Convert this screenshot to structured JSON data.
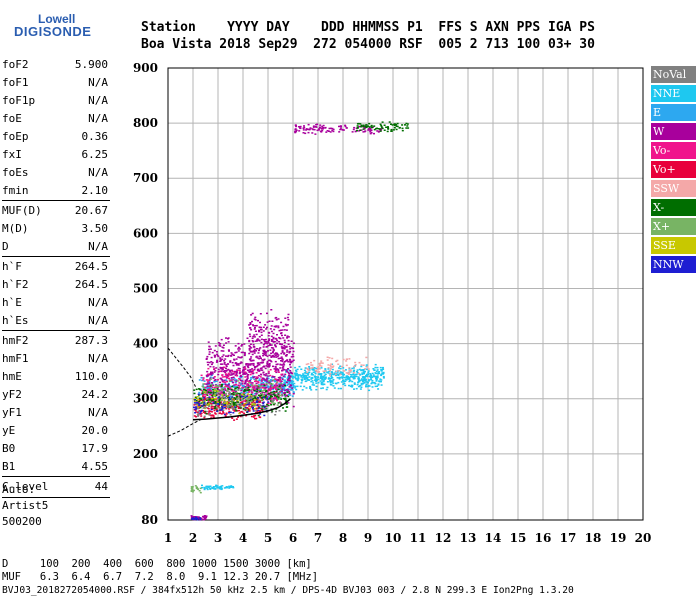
{
  "logo": {
    "line1": "Lowell",
    "line2": "DIGISONDE"
  },
  "header": {
    "labels": "Station    YYYY DAY    DDD HHMMSS P1  FFS S AXN PPS IGA PS",
    "values": "Boa Vista 2018 Sep29  272 054000 RSF  005 2 713 100 03+ 30"
  },
  "params": [
    {
      "name": "foF2",
      "value": "5.900"
    },
    {
      "name": "foF1",
      "value": "N/A"
    },
    {
      "name": "foF1p",
      "value": "N/A"
    },
    {
      "name": "foE",
      "value": "N/A"
    },
    {
      "name": "foEp",
      "value": "0.36"
    },
    {
      "name": "fxI",
      "value": "6.25"
    },
    {
      "name": "foEs",
      "value": "N/A"
    },
    {
      "name": "fmin",
      "value": "2.10"
    },
    {
      "name": "MUF(D)",
      "value": "20.67"
    },
    {
      "name": "M(D)",
      "value": "3.50"
    },
    {
      "name": "D",
      "value": "N/A"
    },
    {
      "name": "h`F",
      "value": "264.5"
    },
    {
      "name": "h`F2",
      "value": "264.5"
    },
    {
      "name": "h`E",
      "value": "N/A"
    },
    {
      "name": "h`Es",
      "value": "N/A"
    },
    {
      "name": "hmF2",
      "value": "287.3"
    },
    {
      "name": "hmF1",
      "value": "N/A"
    },
    {
      "name": "hmE",
      "value": "110.0"
    },
    {
      "name": "yF2",
      "value": "24.2"
    },
    {
      "name": "yF1",
      "value": "N/A"
    },
    {
      "name": "yE",
      "value": "20.0"
    },
    {
      "name": "B0",
      "value": "17.9"
    },
    {
      "name": "B1",
      "value": "4.55"
    },
    {
      "name": "C-level",
      "value": "44"
    }
  ],
  "auto": {
    "line1": "Auto:",
    "line2": "Artist5",
    "line3": "500200"
  },
  "legend": [
    {
      "label": "NoVal",
      "color": "#808080"
    },
    {
      "label": "NNE",
      "color": "#1ec8f0"
    },
    {
      "label": "E",
      "color": "#2da8f0"
    },
    {
      "label": "W",
      "color": "#a8009c"
    },
    {
      "label": "Vo-",
      "color": "#f0148c"
    },
    {
      "label": "Vo+",
      "color": "#e8003c"
    },
    {
      "label": "SSW",
      "color": "#f4a8a8"
    },
    {
      "label": "X-",
      "color": "#006e00"
    },
    {
      "label": "X+",
      "color": "#78b464"
    },
    {
      "label": "SSE",
      "color": "#c8c800"
    },
    {
      "label": "NNW",
      "color": "#1e1ed2"
    }
  ],
  "footer": {
    "line1": "D     100  200  400  600  800 1000 1500 3000 [km]",
    "line2": "MUF   6.3  6.4  6.7  7.2  8.0  9.1 12.3 20.7 [MHz]",
    "line3": "BVJ03_2018272054000.RSF / 384fx512h 50 kHz 2.5 km / DPS-4D BVJ03 003 / 2.8 N 299.3 E Ion2Png 1.3.20"
  },
  "chart_data": {
    "type": "scatter",
    "xlim": [
      1,
      20
    ],
    "ylim": [
      80,
      900
    ],
    "x_ticks": [
      1,
      2,
      3,
      4,
      5,
      6,
      7,
      8,
      9,
      10,
      11,
      12,
      13,
      14,
      15,
      16,
      17,
      18,
      19,
      20
    ],
    "y_ticks": [
      80,
      200,
      300,
      400,
      500,
      600,
      700,
      800,
      900
    ],
    "grid": true,
    "clusters": [
      {
        "series": "NNE",
        "xr": [
          5.6,
          9.6
        ],
        "yr": [
          315,
          365
        ],
        "n": 520
      },
      {
        "series": "E",
        "xr": [
          2.2,
          6.0
        ],
        "yr": [
          300,
          345
        ],
        "n": 350
      },
      {
        "series": "W",
        "xr": [
          2.5,
          6.0
        ],
        "yr": [
          280,
          420
        ],
        "n": 650
      },
      {
        "series": "W",
        "xr": [
          4.2,
          5.8
        ],
        "yr": [
          340,
          470
        ],
        "n": 220
      },
      {
        "series": "Vo-",
        "xr": [
          2.3,
          5.5
        ],
        "yr": [
          280,
          360
        ],
        "n": 220
      },
      {
        "series": "Vo+",
        "xr": [
          2.0,
          4.8
        ],
        "yr": [
          262,
          312
        ],
        "n": 260
      },
      {
        "series": "SSW",
        "xr": [
          6.5,
          9.0
        ],
        "yr": [
          340,
          380
        ],
        "n": 80
      },
      {
        "series": "X-",
        "xr": [
          2.0,
          5.8
        ],
        "yr": [
          270,
          330
        ],
        "n": 260
      },
      {
        "series": "X+",
        "xr": [
          2.2,
          5.5
        ],
        "yr": [
          280,
          340
        ],
        "n": 110
      },
      {
        "series": "SSE",
        "xr": [
          2.0,
          4.5
        ],
        "yr": [
          270,
          320
        ],
        "n": 60
      },
      {
        "series": "NNW",
        "xr": [
          2.0,
          5.0
        ],
        "yr": [
          270,
          310
        ],
        "n": 80
      },
      {
        "series": "NoVal",
        "xr": [
          2.0,
          5.5
        ],
        "yr": [
          260,
          320
        ],
        "n": 70
      },
      {
        "series": "W",
        "xr": [
          6.0,
          9.5
        ],
        "yr": [
          780,
          800
        ],
        "n": 120
      },
      {
        "series": "X-",
        "xr": [
          8.5,
          10.6
        ],
        "yr": [
          785,
          805
        ],
        "n": 70
      },
      {
        "series": "NNE",
        "xr": [
          2.3,
          3.6
        ],
        "yr": [
          135,
          145
        ],
        "n": 60
      },
      {
        "series": "X+",
        "xr": [
          1.9,
          2.3
        ],
        "yr": [
          130,
          145
        ],
        "n": 20
      },
      {
        "series": "W",
        "xr": [
          1.9,
          2.5
        ],
        "yr": [
          80,
          90
        ],
        "n": 40
      },
      {
        "series": "NNW",
        "xr": [
          1.9,
          2.3
        ],
        "yr": [
          80,
          88
        ],
        "n": 15
      }
    ],
    "trace_fit": [
      {
        "x": 2.0,
        "y": 262
      },
      {
        "x": 2.5,
        "y": 263
      },
      {
        "x": 3.0,
        "y": 265
      },
      {
        "x": 3.5,
        "y": 267
      },
      {
        "x": 4.0,
        "y": 270
      },
      {
        "x": 4.5,
        "y": 273
      },
      {
        "x": 5.0,
        "y": 278
      },
      {
        "x": 5.4,
        "y": 284
      },
      {
        "x": 5.7,
        "y": 292
      },
      {
        "x": 5.9,
        "y": 300
      }
    ],
    "profile_upper": [
      {
        "x": 1.0,
        "y": 392
      },
      {
        "x": 1.3,
        "y": 375
      },
      {
        "x": 1.6,
        "y": 358
      },
      {
        "x": 1.9,
        "y": 340
      },
      {
        "x": 2.1,
        "y": 322
      }
    ],
    "profile_lower": [
      {
        "x": 1.0,
        "y": 232
      },
      {
        "x": 1.5,
        "y": 242
      },
      {
        "x": 2.0,
        "y": 255
      },
      {
        "x": 2.3,
        "y": 262
      }
    ]
  }
}
